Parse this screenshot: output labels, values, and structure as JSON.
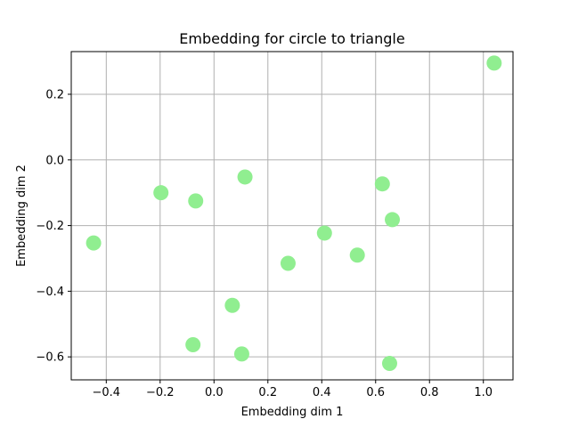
{
  "chart_data": {
    "type": "scatter",
    "title": "Embedding for circle to triangle",
    "xlabel": "Embedding dim 1",
    "ylabel": "Embedding dim 2",
    "xlim": [
      -0.53,
      1.11
    ],
    "ylim": [
      -0.67,
      0.33
    ],
    "xticks": [
      -0.4,
      -0.2,
      0.0,
      0.2,
      0.4,
      0.6,
      0.8,
      1.0
    ],
    "xtick_labels": [
      "−0.4",
      "−0.2",
      "0.0",
      "0.2",
      "0.4",
      "0.6",
      "0.8",
      "1.0"
    ],
    "yticks": [
      -0.6,
      -0.4,
      -0.2,
      0.0,
      0.2
    ],
    "ytick_labels": [
      "−0.6",
      "−0.4",
      "−0.2",
      "0.0",
      "0.2"
    ],
    "grid": true,
    "marker_color": "#90ee90",
    "points": [
      {
        "x": 1.04,
        "y": 0.295
      },
      {
        "x": 0.115,
        "y": -0.052
      },
      {
        "x": 0.625,
        "y": -0.073
      },
      {
        "x": -0.197,
        "y": -0.1
      },
      {
        "x": -0.068,
        "y": -0.125
      },
      {
        "x": 0.662,
        "y": -0.182
      },
      {
        "x": 0.41,
        "y": -0.223
      },
      {
        "x": -0.447,
        "y": -0.253
      },
      {
        "x": 0.532,
        "y": -0.29
      },
      {
        "x": 0.275,
        "y": -0.315
      },
      {
        "x": 0.068,
        "y": -0.443
      },
      {
        "x": -0.078,
        "y": -0.563
      },
      {
        "x": 0.103,
        "y": -0.591
      },
      {
        "x": 0.652,
        "y": -0.62
      }
    ]
  }
}
